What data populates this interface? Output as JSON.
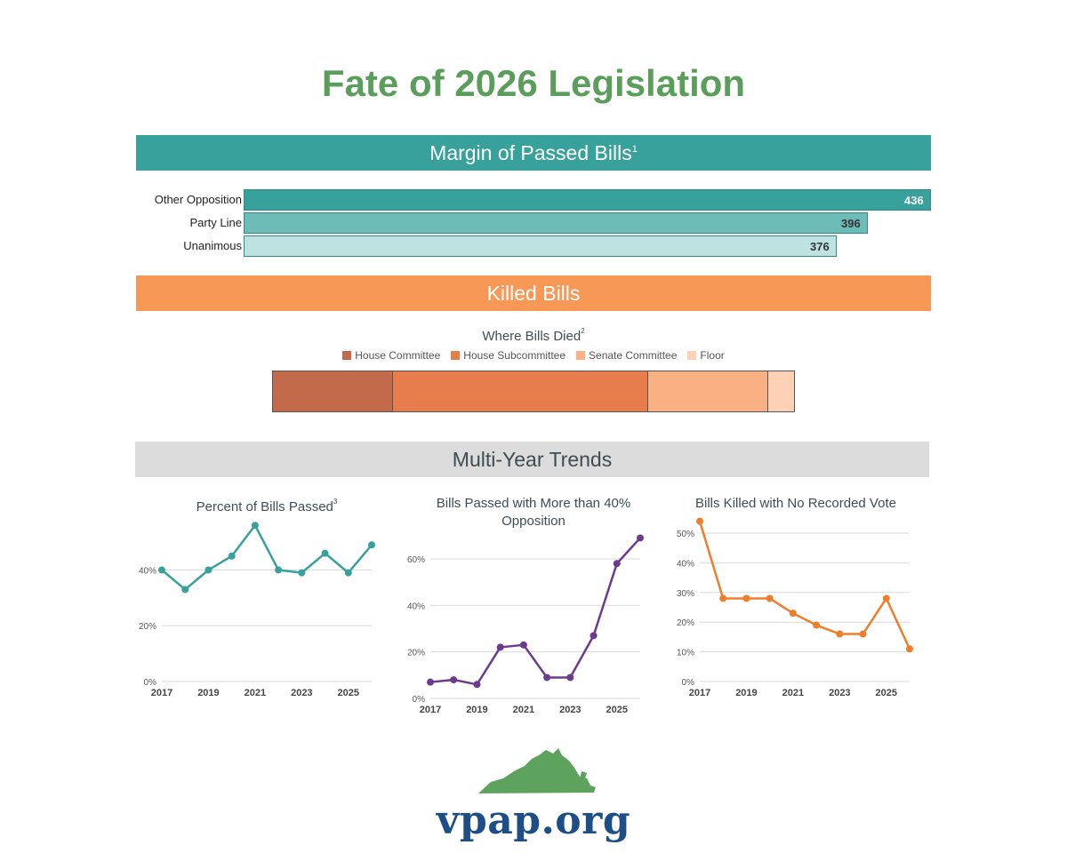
{
  "title": "Fate of 2026 Legislation",
  "banners": {
    "margin": "Margin of Passed Bills",
    "margin_note": "1",
    "killed": "Killed Bills",
    "trends": "Multi-Year Trends"
  },
  "colors": {
    "title": "#5b9e5b",
    "teal": "#38a19c",
    "orange": "#f79857",
    "purple": "#6c3b8e",
    "trend_orange": "#ef7e2c",
    "logo_blue": "#1d4f86"
  },
  "chart_data": [
    {
      "id": "margin",
      "type": "bar",
      "orientation": "horizontal",
      "categories": [
        "Other Opposition",
        "Party Line",
        "Unanimous"
      ],
      "values": [
        436,
        396,
        376
      ],
      "colors": [
        "#38a19c",
        "#6dbcb7",
        "#bde2df"
      ],
      "label_colors": [
        "#ffffff",
        "#333333",
        "#333333"
      ],
      "xlim": [
        0,
        436
      ]
    },
    {
      "id": "where_died",
      "type": "bar",
      "stacked": true,
      "title": "Where Bills Died",
      "title_note": "2",
      "series": [
        {
          "name": "House Committee",
          "value": 23,
          "color": "#c26a49"
        },
        {
          "name": "House Subcommittee",
          "value": 49,
          "color": "#e77d4d"
        },
        {
          "name": "Senate Committee",
          "value": 23,
          "color": "#f9b083"
        },
        {
          "name": "Floor",
          "value": 5,
          "color": "#fcd1b5"
        }
      ],
      "legend": "top"
    },
    {
      "id": "pct_passed",
      "type": "line",
      "title": "Percent of Bills Passed",
      "title_note": "3",
      "x": [
        2017,
        2018,
        2019,
        2020,
        2021,
        2022,
        2023,
        2024,
        2025,
        2026
      ],
      "values": [
        40,
        33,
        40,
        45,
        56,
        40,
        39,
        46,
        39,
        49
      ],
      "color": "#38a19c",
      "ylim": [
        0,
        60
      ],
      "yticks": [
        0,
        20,
        40
      ],
      "ytick_labels": [
        "0%",
        "20%",
        "40%"
      ],
      "xticks": [
        2017,
        2019,
        2021,
        2023,
        2025
      ],
      "grid": true
    },
    {
      "id": "opposition",
      "type": "line",
      "title": "Bills Passed with More than 40% Opposition",
      "x": [
        2017,
        2018,
        2019,
        2020,
        2021,
        2022,
        2023,
        2024,
        2025,
        2026
      ],
      "values": [
        7,
        8,
        6,
        22,
        23,
        9,
        9,
        27,
        58,
        69
      ],
      "color": "#6c3b8e",
      "ylim": [
        0,
        60
      ],
      "yticks": [
        0,
        20,
        40,
        60
      ],
      "ytick_labels": [
        "0%",
        "20%",
        "40%",
        "60%"
      ],
      "xticks": [
        2017,
        2019,
        2021,
        2023,
        2025
      ],
      "grid": true
    },
    {
      "id": "no_vote",
      "type": "line",
      "title": "Bills Killed with No Recorded Vote",
      "x": [
        2017,
        2018,
        2019,
        2020,
        2021,
        2022,
        2023,
        2024,
        2025,
        2026
      ],
      "values": [
        54,
        28,
        28,
        28,
        23,
        19,
        16,
        16,
        28,
        11
      ],
      "color": "#ef7e2c",
      "ylim": [
        0,
        50
      ],
      "yticks": [
        0,
        10,
        20,
        30,
        40,
        50
      ],
      "ytick_labels": [
        "0%",
        "10%",
        "20%",
        "30%",
        "40%",
        "50%"
      ],
      "xticks": [
        2017,
        2019,
        2021,
        2023,
        2025
      ],
      "grid": true
    }
  ],
  "footer": {
    "logo_text": "vpap.org",
    "logo_icon": "virginia-state-shape-icon"
  }
}
